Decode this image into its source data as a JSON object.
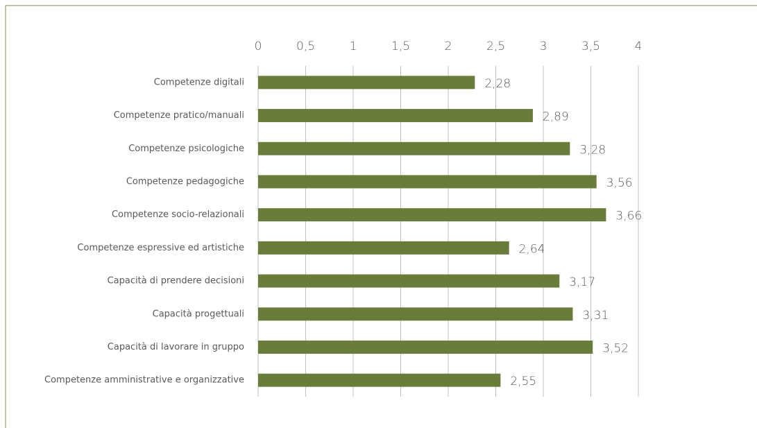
{
  "chart_data": {
    "type": "barh",
    "categories": [
      "Competenze digitali",
      "Competenze pratico/manuali",
      "Competenze psicologiche",
      "Competenze pedagogiche",
      "Competenze socio-relazionali",
      "Competenze espressive ed artistiche",
      "Capacità di prendere decisioni",
      "Capacità progettuali",
      "Capacità di lavorare in gruppo",
      "Competenze amministrative e organizzative"
    ],
    "values": [
      2.28,
      2.89,
      3.28,
      3.56,
      3.66,
      2.64,
      3.17,
      3.31,
      3.52,
      2.55
    ],
    "value_labels": [
      "2,28",
      "2,89",
      "3,28",
      "3,56",
      "3,66",
      "2,64",
      "3,17",
      "3,31",
      "3,52",
      "2,55"
    ],
    "color": "#687d3b",
    "xlim": [
      0,
      4
    ],
    "xticks": [
      0,
      {
        "value": 0.5,
        "label": "0,5"
      },
      1,
      {
        "value": 1.5,
        "label": "1,5"
      },
      2,
      {
        "value": 2.5,
        "label": "2,5"
      },
      3,
      {
        "value": 3.5,
        "label": "3,5"
      },
      4
    ],
    "grid": true
  }
}
